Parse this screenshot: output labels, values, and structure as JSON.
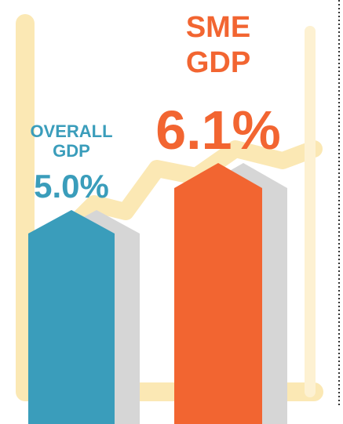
{
  "chart_data": {
    "type": "bar",
    "categories": [
      "OVERALL GDP",
      "SME GDP"
    ],
    "values": [
      5.0,
      6.1
    ],
    "value_labels": [
      "5.0%",
      "6.1%"
    ],
    "colors": [
      "#3a9dbb",
      "#f26531"
    ]
  }
}
